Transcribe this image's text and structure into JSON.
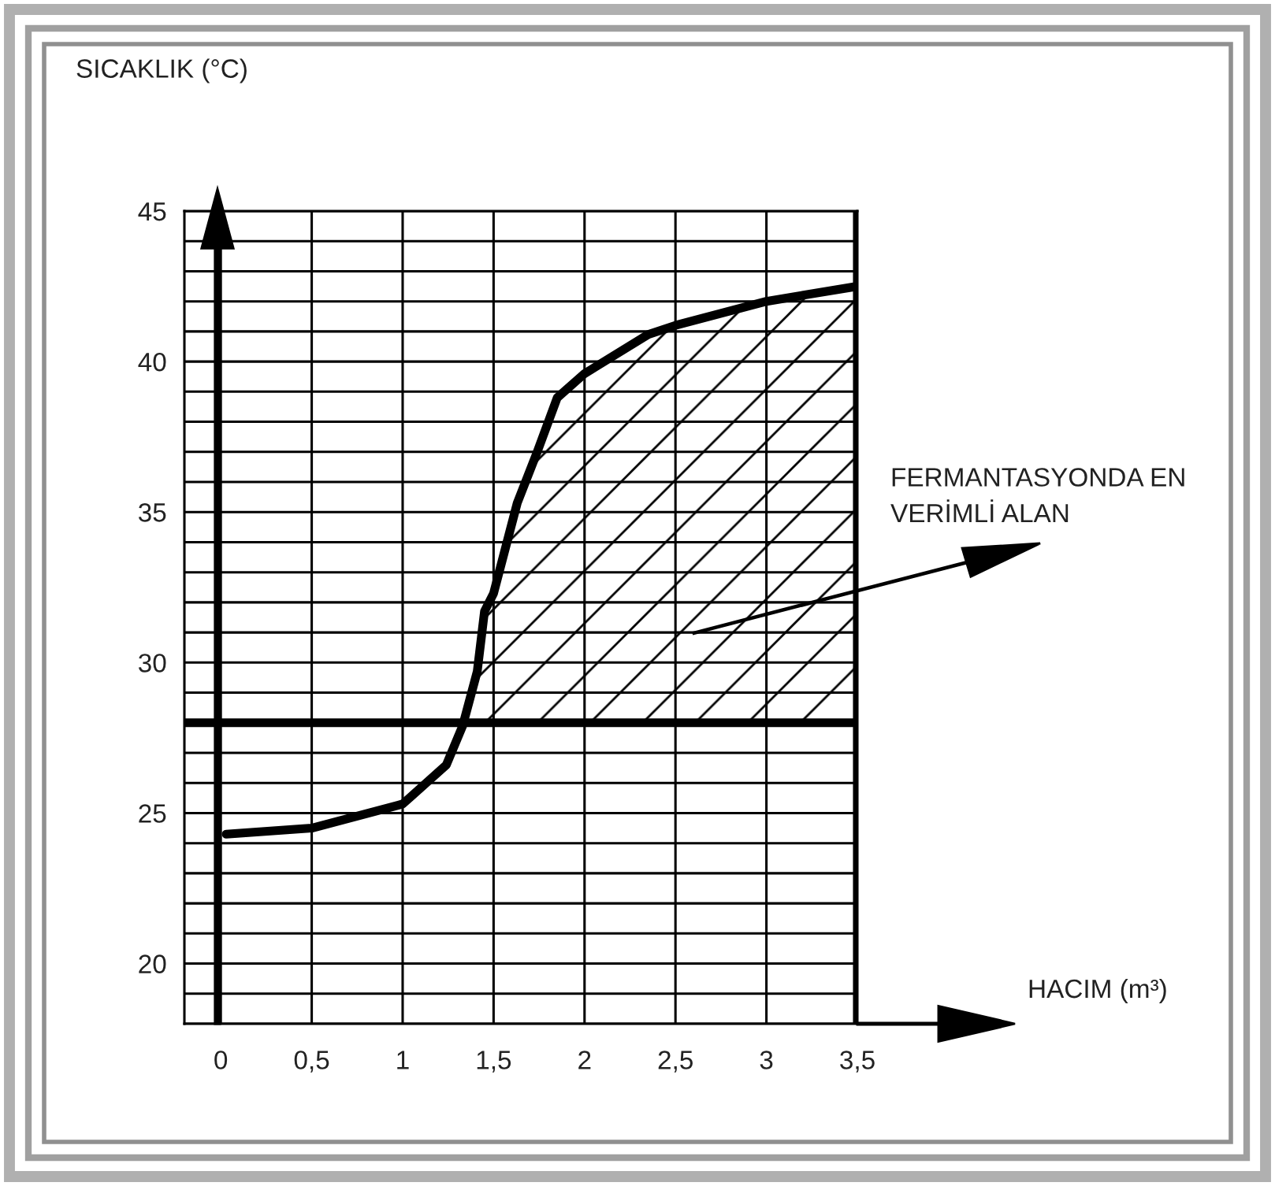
{
  "chart_data": {
    "type": "line",
    "ylabel": "SICAKLIK (°C)",
    "series": [
      {
        "color": "#000000",
        "x": [
          0.03,
          0.5,
          1.0,
          1.24,
          1.33,
          1.41,
          1.45,
          1.5,
          1.63,
          1.74,
          1.85,
          2.0,
          2.35,
          2.5,
          2.75,
          3.0,
          3.5
        ],
        "values": [
          24.3,
          24.5,
          25.3,
          26.6,
          27.9,
          29.7,
          31.7,
          32.3,
          35.3,
          37.0,
          38.8,
          39.6,
          40.9,
          41.2,
          41.6,
          42.0,
          42.5
        ]
      }
    ],
    "xlim": [
      -0.2,
      3.5
    ],
    "ylim": [
      18,
      45
    ],
    "xticks": [
      0,
      {
        "value": 0.5,
        "label": "0,5"
      },
      1,
      {
        "value": 1.5,
        "label": "1,5"
      },
      2,
      {
        "value": 2.5,
        "label": "2,5"
      },
      3,
      {
        "value": 3.5,
        "label": "3,5"
      }
    ],
    "yticks": [
      {
        "value": 18,
        "label": null
      },
      {
        "value": 19,
        "label": null
      },
      20,
      {
        "value": 21,
        "label": null
      },
      {
        "value": 22,
        "label": null
      },
      {
        "value": 23,
        "label": null
      },
      {
        "value": 24,
        "label": null
      },
      25,
      {
        "value": 26,
        "label": null
      },
      {
        "value": 27,
        "label": null
      },
      {
        "value": 28,
        "label": null
      },
      {
        "value": 29,
        "label": null
      },
      30,
      {
        "value": 31,
        "label": null
      },
      {
        "value": 32,
        "label": null
      },
      {
        "value": 33,
        "label": null
      },
      {
        "value": 34,
        "label": null
      },
      35,
      {
        "value": 36,
        "label": null
      },
      {
        "value": 37,
        "label": null
      },
      {
        "value": 38,
        "label": null
      },
      {
        "value": 39,
        "label": null
      },
      40,
      {
        "value": 41,
        "label": null
      },
      {
        "value": 42,
        "label": null
      },
      {
        "value": 43,
        "label": null
      },
      {
        "value": 44,
        "label": null
      },
      45
    ],
    "grid": true,
    "marker": "none",
    "line_style": "solid",
    "ref_lines": [
      {
        "axis": "y",
        "value": 28,
        "color": "#000000"
      },
      {
        "axis": "x",
        "value": 3.5,
        "color": "#000000"
      }
    ],
    "annotations": [
      "FERMANTASYONDA EN\nVERİMLİ ALAN",
      "HACIM (m³)"
    ]
  }
}
